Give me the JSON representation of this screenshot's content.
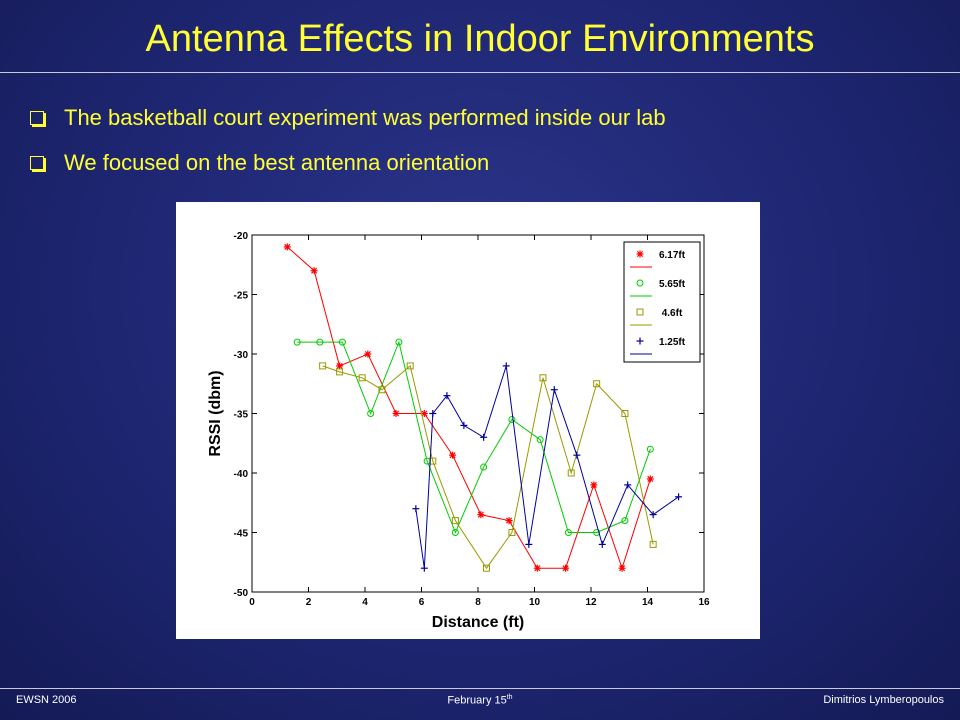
{
  "slide": {
    "title": "Antenna Effects in Indoor Environments",
    "bullets": [
      "The basketball court experiment was performed inside our lab",
      "We focused on the best antenna orientation"
    ],
    "footer": {
      "left": "EWSN 2006",
      "middle_main": "February 15",
      "middle_sup": "th",
      "right": "Dimitrios Lymberopoulos"
    },
    "colors": {
      "background": "#1e2672",
      "title_text": "#ffff33",
      "footer_text": "#ffffff"
    }
  },
  "chart_data": {
    "type": "line",
    "title": "",
    "xlabel": "Distance (ft)",
    "ylabel": "RSSI (dbm)",
    "xlim": [
      0,
      16
    ],
    "ylim": [
      -50,
      -20
    ],
    "xticks": [
      0,
      2,
      4,
      6,
      8,
      10,
      12,
      14,
      16
    ],
    "yticks": [
      -20,
      -25,
      -30,
      -35,
      -40,
      -45,
      -50
    ],
    "grid": false,
    "legend_position": "top-right",
    "series": [
      {
        "name": "6.17ft",
        "color": "#ff0000",
        "marker": "star",
        "x": [
          1.25,
          2.2,
          3.1,
          4.1,
          5.1,
          6.1,
          7.1,
          8.1,
          9.1,
          10.1,
          11.1,
          12.1,
          13.1,
          14.1
        ],
        "y": [
          -21,
          -23,
          -31,
          -30,
          -35,
          -35,
          -38.5,
          -43.5,
          -44,
          -48,
          -48,
          -41,
          -48,
          -40.5
        ]
      },
      {
        "name": "5.65ft",
        "color": "#00cc00",
        "marker": "circle",
        "x": [
          1.6,
          2.4,
          3.2,
          4.2,
          5.2,
          6.2,
          7.2,
          8.2,
          9.2,
          10.2,
          11.2,
          12.2,
          13.2,
          14.1
        ],
        "y": [
          -29,
          -29,
          -29,
          -35,
          -29,
          -39,
          -45,
          -39.5,
          -35.5,
          -37.2,
          -45,
          -45,
          -44,
          -38
        ]
      },
      {
        "name": "4.6ft",
        "color": "#999900",
        "marker": "square",
        "x": [
          2.5,
          3.1,
          3.9,
          4.6,
          5.6,
          6.4,
          7.2,
          8.3,
          9.2,
          10.3,
          11.3,
          12.2,
          13.2,
          14.2
        ],
        "y": [
          -31,
          -31.5,
          -32,
          -33,
          -31,
          -39,
          -44,
          -48,
          -45,
          -32,
          -40,
          -32.5,
          -35,
          -46
        ]
      },
      {
        "name": "1.25ft",
        "color": "#000099",
        "marker": "plus",
        "x": [
          5.8,
          6.1,
          6.4,
          6.9,
          7.5,
          8.2,
          9.0,
          9.8,
          10.7,
          11.5,
          12.4,
          13.3,
          14.2,
          15.1
        ],
        "y": [
          -43,
          -48,
          -35,
          -33.5,
          -36,
          -37,
          -31,
          -46,
          -33,
          -38.5,
          -46,
          -41,
          -43.5,
          -42
        ]
      }
    ]
  }
}
